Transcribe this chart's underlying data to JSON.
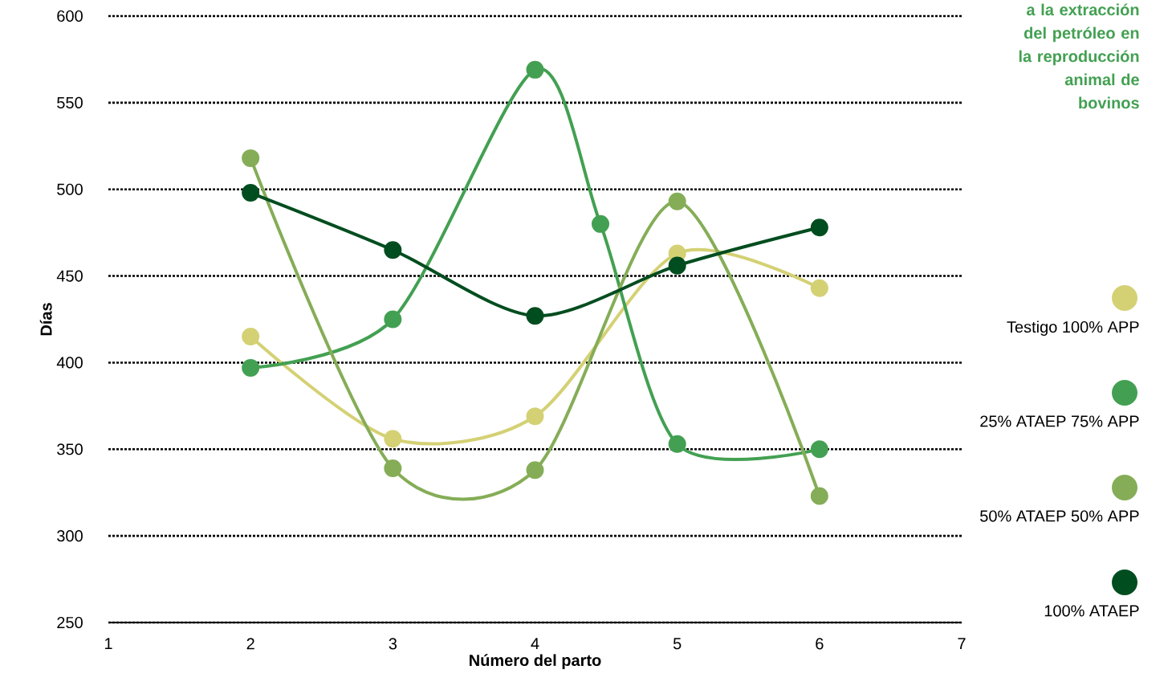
{
  "chart_data": {
    "type": "line",
    "title": "a la extracción del petróleo en la reproducción animal de bovinos",
    "xlabel": "Número del parto",
    "ylabel": "Días",
    "x": [
      2,
      3,
      4,
      5,
      6
    ],
    "series": [
      {
        "name": "Testigo 100% APP",
        "color": "#d4d175",
        "values": [
          415,
          356,
          369,
          463,
          443
        ]
      },
      {
        "name": "25% ATAEP 75% APP",
        "color": "#43a052",
        "x": [
          2,
          3,
          4,
          4.46,
          5,
          6
        ],
        "values": [
          397,
          425,
          569,
          480,
          353,
          350
        ]
      },
      {
        "name": "50% ATAEP 50% APP",
        "color": "#85ad57",
        "values": [
          518,
          339,
          338,
          493,
          323
        ]
      },
      {
        "name": "100% ATAEP",
        "color": "#004d1f",
        "values": [
          498,
          465,
          427,
          456,
          478
        ]
      }
    ],
    "xlim": [
      1,
      7
    ],
    "ylim": [
      250,
      600
    ],
    "xticks": [
      1,
      2,
      3,
      4,
      5,
      6,
      7
    ],
    "yticks": [
      250,
      300,
      350,
      400,
      450,
      500,
      550,
      600
    ],
    "grid": "y",
    "legend": "right",
    "marker": "circle",
    "line_style": "solid"
  }
}
